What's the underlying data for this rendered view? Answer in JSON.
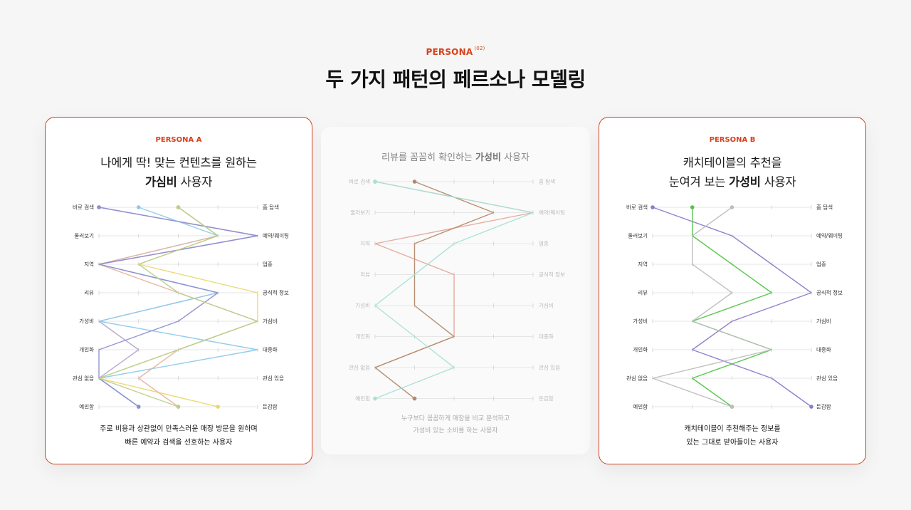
{
  "header": {
    "eyebrow": "PERSONA",
    "eyebrow_sup": "(02)",
    "title": "두 가지 패턴의 페르소나 모델링"
  },
  "persona_a": {
    "label": "PERSONA A",
    "title_line1": "나에게 딱! 맞는 컨텐츠를 원하는",
    "title_line2_bold": "가심비",
    "title_line2_rest": " 사용자",
    "desc_line1": "주로 비용과 상관없이 만족스러운 매장 방문을 원하며",
    "desc_line2": "빠른 예약과 검색을 선호하는 사용자"
  },
  "persona_mid": {
    "title_rest": "리뷰를 꼼꼼히 확인하는 ",
    "title_bold": "가성비",
    "title_tail": " 사용자",
    "desc_line1": "누구보다 꼼꼼하게 매장을 비교 분석하고",
    "desc_line2": "가성비 있는 소비를 하는 사용자"
  },
  "persona_b": {
    "label": "PERSONA B",
    "title_line1": "캐치테이블의 추천을",
    "title_line2_rest": "눈여겨 보는 ",
    "title_line2_bold": "가성비",
    "title_line2_tail": " 사용자",
    "desc_line1": "캐치테이블이 추천해주는 정보를",
    "desc_line2": "있는 그대로 받아들이는 사용자"
  },
  "chart_data": [
    {
      "type": "line",
      "chart_id": "a",
      "axis_points": 5,
      "left_labels": [
        "바로 검색",
        "둘러보기",
        "지역",
        "리뷰",
        "가성비",
        "개인화",
        "관심 없음",
        "예민함"
      ],
      "right_labels": [
        "홈 탐색",
        "예약/웨이팅",
        "업종",
        "공식적 정보",
        "가심비",
        "대중화",
        "관심 있음",
        "둔감함"
      ],
      "series": [
        {
          "color": "#b9a4cc",
          "values": [
            0,
            4,
            0,
            3,
            0,
            1,
            0,
            1
          ],
          "dot": 0
        },
        {
          "color": "#8ccbeb",
          "values": [
            1,
            3,
            0,
            3,
            0,
            4,
            0,
            1
          ],
          "dot": 1
        },
        {
          "color": "#ead86a",
          "values": [
            2,
            3,
            1,
            4,
            4,
            2,
            0,
            3
          ],
          "dot": 2
        },
        {
          "color": "#e8b3a0",
          "values": [
            2,
            3,
            0,
            2,
            4,
            2,
            1,
            2
          ],
          "dot": 3
        },
        {
          "color": "#8f8ed1",
          "values": [
            0,
            4,
            0,
            3,
            2,
            0,
            0,
            1
          ],
          "dot": 4
        },
        {
          "color": "#b9cf8c",
          "values": [
            2,
            3,
            1,
            2,
            4,
            2,
            0,
            2
          ],
          "dot": 5
        }
      ]
    },
    {
      "type": "line",
      "chart_id": "mid",
      "axis_points": 5,
      "left_labels": [
        "바로 검색",
        "둘러보기",
        "지역",
        "리뷰",
        "가성비",
        "개인화",
        "관심 없음",
        "예민함"
      ],
      "right_labels": [
        "홈 탐색",
        "예약/웨이팅",
        "업종",
        "공식적 정보",
        "가심비",
        "대중화",
        "관심 있음",
        "둔감함"
      ],
      "series": [
        {
          "color": "#e3a99a",
          "values": [
            0,
            4,
            0,
            2,
            2,
            2,
            0,
            1
          ],
          "dot": 0
        },
        {
          "color": "#b48a6a",
          "values": [
            1,
            3,
            1,
            1,
            1,
            2,
            0,
            1
          ],
          "dot": 1
        },
        {
          "color": "#a6e2d6",
          "values": [
            0,
            4,
            2,
            1,
            0,
            1,
            2,
            0
          ],
          "dot": 2
        }
      ]
    },
    {
      "type": "line",
      "chart_id": "b",
      "axis_points": 5,
      "left_labels": [
        "바로 검색",
        "둘러보기",
        "지역",
        "리뷰",
        "가성비",
        "개인화",
        "관심 없음",
        "예민함"
      ],
      "right_labels": [
        "홈 탐색",
        "예약/웨이팅",
        "업종",
        "공식적 정보",
        "가심비",
        "대중화",
        "관심 있음",
        "둔감함"
      ],
      "series": [
        {
          "color": "#8d79cc",
          "values": [
            0,
            2,
            3,
            4,
            2,
            1,
            3,
            4
          ],
          "dot": 0
        },
        {
          "color": "#4fc545",
          "values": [
            1,
            1,
            2,
            3,
            1,
            3,
            1,
            2
          ],
          "dot": 1
        },
        {
          "color": "#bdbdbd",
          "values": [
            2,
            1,
            1,
            2,
            1,
            3,
            0,
            2
          ],
          "dot": 2
        }
      ]
    }
  ]
}
